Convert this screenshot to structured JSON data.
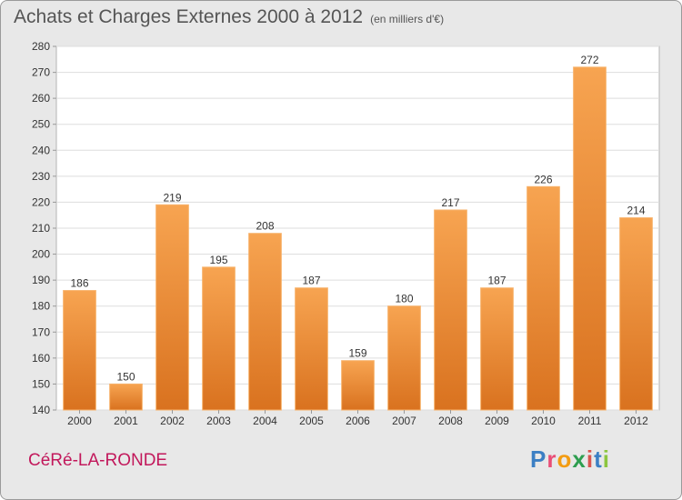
{
  "title": "Achats et Charges Externes 2000 à 2012",
  "unit": "(en milliers d'€)",
  "place": "CéRé-LA-RONDE",
  "brand": {
    "letters": [
      "P",
      "r",
      "o",
      "x",
      "i",
      "t",
      "i"
    ],
    "colors": [
      "#3b7fc4",
      "#e94e77",
      "#f39c12",
      "#2e9e4f",
      "#d9534f",
      "#3b7fc4",
      "#8cc63f"
    ]
  },
  "chart_data": {
    "type": "bar",
    "categories": [
      "2000",
      "2001",
      "2002",
      "2003",
      "2004",
      "2005",
      "2006",
      "2007",
      "2008",
      "2009",
      "2010",
      "2011",
      "2012"
    ],
    "values": [
      186,
      150,
      219,
      195,
      208,
      187,
      159,
      180,
      217,
      187,
      226,
      272,
      214
    ],
    "ylim": [
      140,
      280
    ],
    "yticks": [
      140,
      150,
      160,
      170,
      180,
      190,
      200,
      210,
      220,
      230,
      240,
      250,
      260,
      270,
      280
    ],
    "bar_color": "#f0943a",
    "grid": true
  }
}
